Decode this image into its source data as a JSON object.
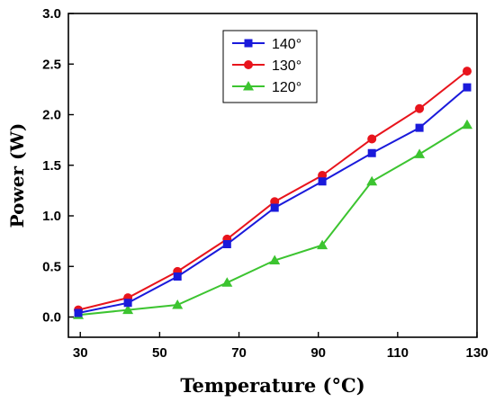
{
  "chart_data": {
    "type": "line",
    "title": "",
    "xlabel": "Temperature (°C)",
    "ylabel": "Power (W)",
    "xlim": [
      27,
      130
    ],
    "ylim": [
      -0.2,
      3.0
    ],
    "xticks": [
      30,
      50,
      70,
      90,
      110,
      130
    ],
    "yticks": [
      0.0,
      0.5,
      1.0,
      1.5,
      2.0,
      2.5,
      3.0
    ],
    "grid": false,
    "legend_position": "top-center",
    "x": [
      29.5,
      42,
      54.5,
      67,
      79,
      91,
      103.5,
      115.5,
      127.5
    ],
    "series": [
      {
        "name": "140°",
        "marker": "square",
        "color": "#1a1adb",
        "values": [
          0.04,
          0.14,
          0.4,
          0.72,
          1.08,
          1.34,
          1.62,
          1.87,
          2.27
        ]
      },
      {
        "name": "130°",
        "marker": "circle",
        "color": "#e8141c",
        "values": [
          0.07,
          0.19,
          0.45,
          0.77,
          1.14,
          1.4,
          1.76,
          2.06,
          2.43
        ]
      },
      {
        "name": "120°",
        "marker": "triangle",
        "color": "#3cc430",
        "values": [
          0.02,
          0.07,
          0.12,
          0.34,
          0.56,
          0.71,
          1.34,
          1.61,
          1.9
        ]
      }
    ]
  }
}
